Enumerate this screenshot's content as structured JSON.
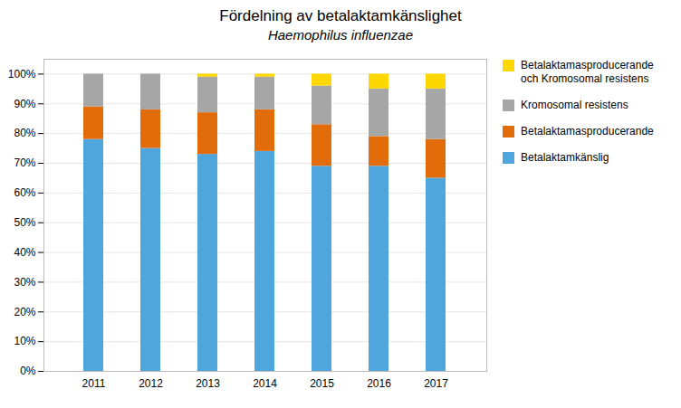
{
  "chart_data": {
    "type": "bar",
    "title": "Fördelning av betalaktamkänslighet",
    "subtitle": "Haemophilus influenzae",
    "categories": [
      "2011",
      "2012",
      "2013",
      "2014",
      "2015",
      "2016",
      "2017"
    ],
    "series": [
      {
        "name": "Betalaktamkänslig",
        "color": "#4EA6DC",
        "values": [
          78,
          75,
          73,
          74,
          69,
          69,
          65
        ]
      },
      {
        "name": "Betalaktamasproducerande",
        "color": "#E36C0A",
        "values": [
          11,
          13,
          14,
          14,
          14,
          10,
          13
        ]
      },
      {
        "name": "Kromosomal resistens",
        "color": "#A6A6A6",
        "values": [
          11,
          12,
          12,
          11,
          13,
          16,
          17
        ]
      },
      {
        "name": "Betalaktamasproducerande\noch Kromosomal resistens",
        "color": "#FFD700",
        "values": [
          0,
          0,
          1,
          1,
          4,
          5,
          5
        ]
      }
    ],
    "stacked": true,
    "ylim": [
      0,
      105
    ],
    "yticks": [
      {
        "value": 0,
        "label": "0%"
      },
      {
        "value": 10,
        "label": "10%"
      },
      {
        "value": 20,
        "label": "20%"
      },
      {
        "value": 30,
        "label": "30%"
      },
      {
        "value": 40,
        "label": "40%"
      },
      {
        "value": 50,
        "label": "50%"
      },
      {
        "value": 60,
        "label": "60%"
      },
      {
        "value": 70,
        "label": "70%"
      },
      {
        "value": 80,
        "label": "80%"
      },
      {
        "value": 90,
        "label": "90%"
      },
      {
        "value": 100,
        "label": "100%"
      }
    ],
    "grid": true,
    "legend": "right"
  }
}
